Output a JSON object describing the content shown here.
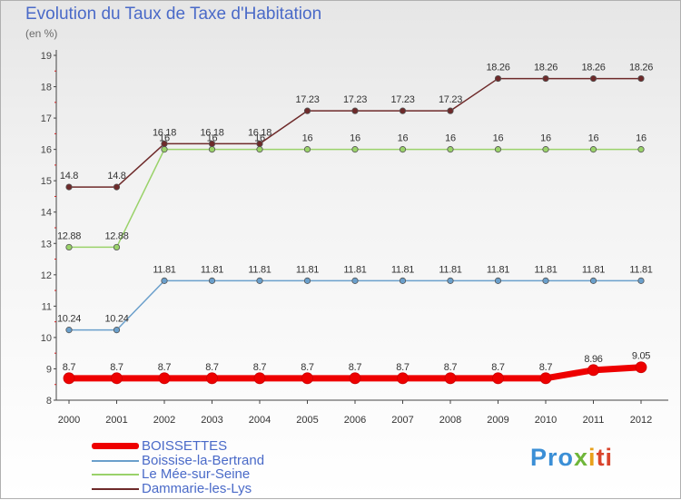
{
  "header": {
    "title": "Evolution du Taux de Taxe d'Habitation",
    "unit": "(en %)"
  },
  "chart_data": {
    "type": "line",
    "x": [
      "2000",
      "2001",
      "2002",
      "2003",
      "2004",
      "2005",
      "2006",
      "2007",
      "2008",
      "2009",
      "2010",
      "2011",
      "2012"
    ],
    "ylim": [
      8,
      19
    ],
    "yticks": [
      8,
      9,
      10,
      11,
      12,
      13,
      14,
      15,
      16,
      17,
      18,
      19
    ],
    "grid": false,
    "legend_position": "bottom-left",
    "series": [
      {
        "name": "BOISSETTES",
        "color": "#ee0000",
        "values": [
          8.7,
          8.7,
          8.7,
          8.7,
          8.7,
          8.7,
          8.7,
          8.7,
          8.7,
          8.7,
          8.7,
          8.96,
          9.05
        ],
        "labels": [
          "8.7",
          "8.7",
          "8.7",
          "8.7",
          "8.7",
          "8.7",
          "8.7",
          "8.7",
          "8.7",
          "8.7",
          "8.7",
          "8.96",
          "9.05"
        ]
      },
      {
        "name": "Boissise-la-Bertrand",
        "color": "#6a9fcb",
        "values": [
          10.24,
          10.24,
          11.81,
          11.81,
          11.81,
          11.81,
          11.81,
          11.81,
          11.81,
          11.81,
          11.81,
          11.81,
          11.81
        ],
        "labels": [
          "10.24",
          "10.24",
          "11.81",
          "11.81",
          "11.81",
          "11.81",
          "11.81",
          "11.81",
          "11.81",
          "11.81",
          "11.81",
          "11.81",
          "11.81"
        ]
      },
      {
        "name": "Le Mée-sur-Seine",
        "color": "#9ad26a",
        "values": [
          12.88,
          12.88,
          16,
          16,
          16,
          16,
          16,
          16,
          16,
          16,
          16,
          16,
          16
        ],
        "labels": [
          "12.88",
          "12.88",
          "16",
          "16",
          "16",
          "16",
          "16",
          "16",
          "16",
          "16",
          "16",
          "16",
          "16"
        ]
      },
      {
        "name": "Dammarie-les-Lys",
        "color": "#6e2a2a",
        "values": [
          14.8,
          14.8,
          16.18,
          16.18,
          16.18,
          17.23,
          17.23,
          17.23,
          17.23,
          18.26,
          18.26,
          18.26,
          18.26
        ],
        "labels": [
          "14.8",
          "14.8",
          "16.18",
          "16.18",
          "16.18",
          "17.23",
          "17.23",
          "17.23",
          "17.23",
          "18.26",
          "18.26",
          "18.26",
          "18.26"
        ]
      }
    ]
  },
  "logo": {
    "parts": [
      "Pro",
      "x",
      "i",
      "ti"
    ]
  }
}
